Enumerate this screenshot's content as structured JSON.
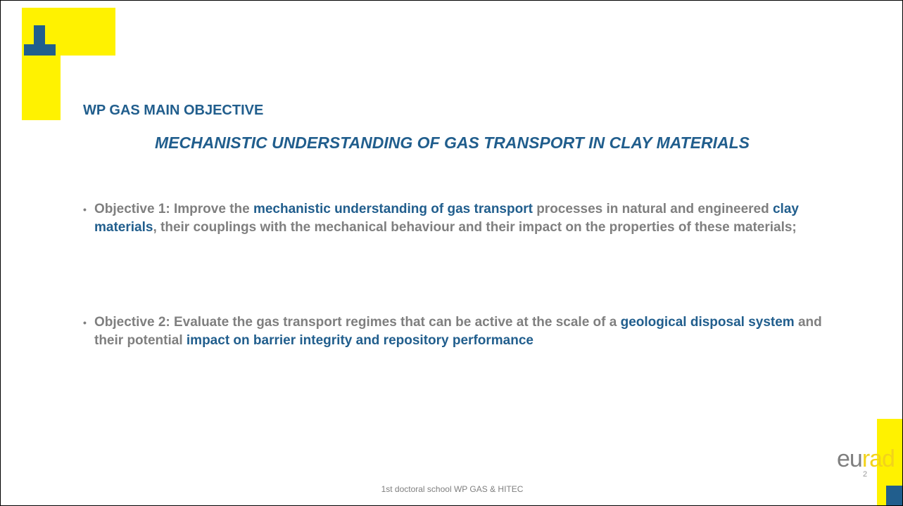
{
  "header": {
    "title": "WP GAS MAIN OBJECTIVE",
    "subtitle": "MECHANISTIC UNDERSTANDING OF GAS TRANSPORT IN CLAY MATERIALS"
  },
  "bullets": [
    {
      "segments": [
        {
          "text": "Objective 1: Improve the ",
          "emphasis": false
        },
        {
          "text": "mechanistic understanding of gas transport",
          "emphasis": true
        },
        {
          "text": " processes in natural and engineered ",
          "emphasis": false
        },
        {
          "text": "clay materials",
          "emphasis": true
        },
        {
          "text": ", their couplings with the mechanical behaviour and their impact on the properties of these materials;",
          "emphasis": false
        }
      ]
    },
    {
      "segments": [
        {
          "text": "Objective 2: Evaluate the gas transport regimes that can be active at the scale of a ",
          "emphasis": false
        },
        {
          "text": "geological disposal system",
          "emphasis": true
        },
        {
          "text": " and their potential ",
          "emphasis": false
        },
        {
          "text": "impact on barrier integrity and repository performance",
          "emphasis": true
        }
      ]
    }
  ],
  "footer": {
    "text": "1st doctoral school WP GAS & HITEC",
    "page": "2"
  },
  "logo": {
    "left": "eu",
    "right": "rad"
  }
}
